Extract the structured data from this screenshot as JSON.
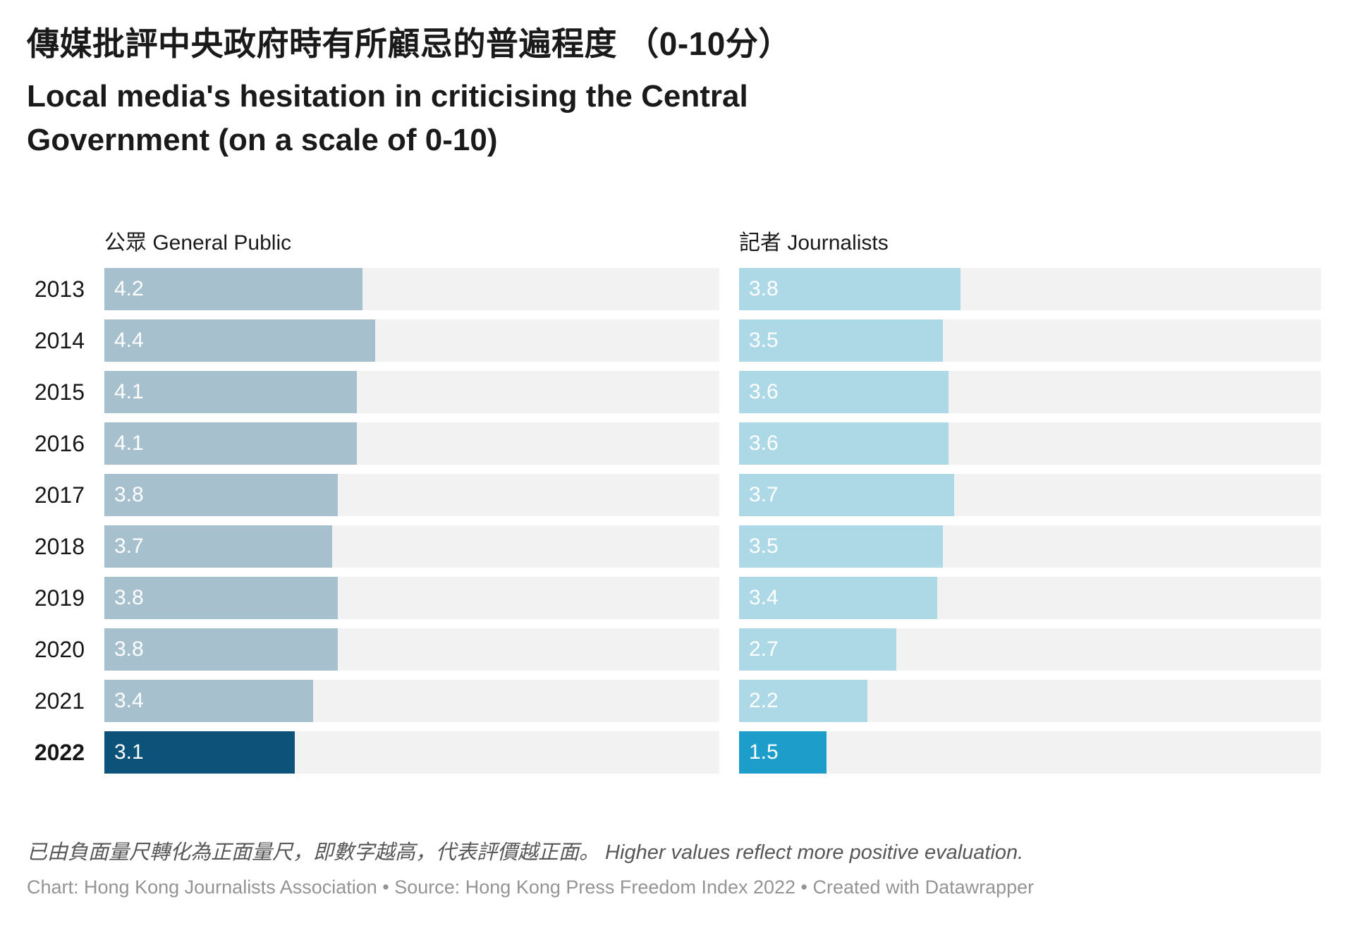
{
  "header": {
    "title_zh": "傳媒批評中央政府時有所顧忌的普遍程度 （0-10分）",
    "title_en": "Local media's hesitation in criticising the Central Government (on a scale of 0-10)"
  },
  "chart_data": {
    "type": "bar",
    "layout": "horizontal-split-bars",
    "categories": [
      "2013",
      "2014",
      "2015",
      "2016",
      "2017",
      "2018",
      "2019",
      "2020",
      "2021",
      "2022"
    ],
    "series": [
      {
        "name": "公眾 General Public",
        "values": [
          4.2,
          4.4,
          4.1,
          4.1,
          3.8,
          3.7,
          3.8,
          3.8,
          3.4,
          3.1
        ],
        "bar_color": "#a7c0ce",
        "highlight_color": "#0d5278"
      },
      {
        "name": "記者 Journalists",
        "values": [
          3.8,
          3.5,
          3.6,
          3.6,
          3.7,
          3.5,
          3.4,
          2.7,
          2.2,
          1.5
        ],
        "bar_color": "#add9e6",
        "highlight_color": "#1d9dca"
      }
    ],
    "xlim": [
      0,
      10
    ],
    "highlight_category": "2022",
    "track_color": "#f2f2f2",
    "value_label_color": "#ffffff",
    "grid": "off",
    "legend_position": "column-headers",
    "value_labels": "inside-start"
  },
  "footer": {
    "note": "已由負面量尺轉化為正面量尺，即數字越高，代表評價越正面。 Higher values reflect more positive evaluation.",
    "attribution": "Chart: Hong Kong Journalists Association • Source: Hong Kong Press Freedom Index 2022 • Created with Datawrapper"
  }
}
